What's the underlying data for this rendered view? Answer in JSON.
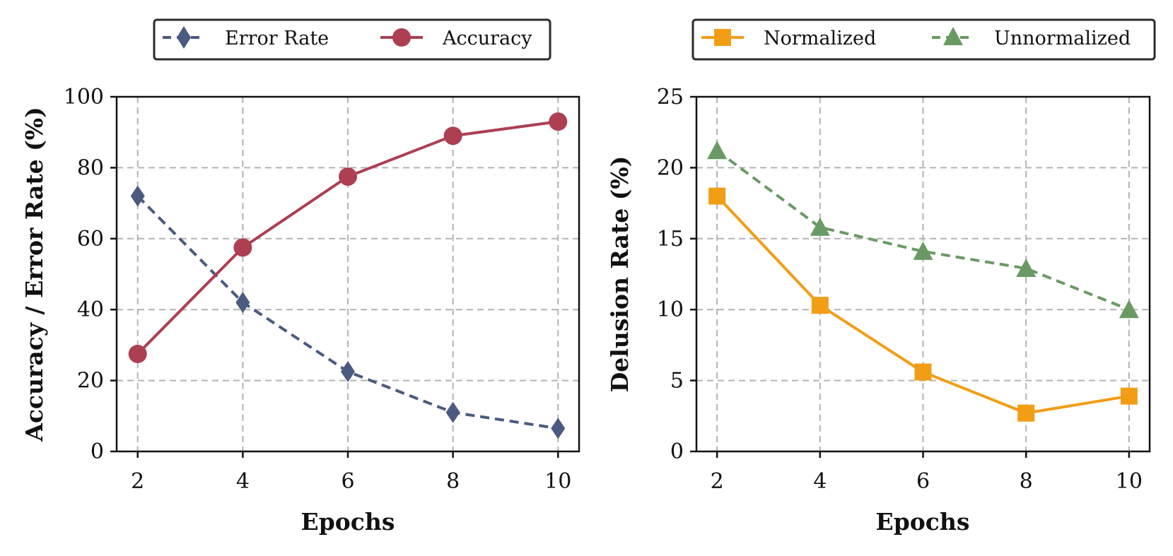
{
  "chart_data": [
    {
      "type": "line",
      "x": [
        2,
        4,
        6,
        8,
        10
      ],
      "xlabel": "Epochs",
      "ylabel": "Accuracy / Error Rate (%)",
      "xticks": [
        "2",
        "4",
        "6",
        "8",
        "10"
      ],
      "yticks": [
        "0",
        "20",
        "40",
        "60",
        "80",
        "100"
      ],
      "xlim": [
        1.6,
        10.4
      ],
      "ylim": [
        0,
        100
      ],
      "grid": true,
      "legend_position": "top-center",
      "series": [
        {
          "name": "Error Rate",
          "values": [
            72,
            42,
            22.5,
            11,
            6.5
          ],
          "color": "#4a5a80",
          "marker": "diamond",
          "linestyle": "dashed"
        },
        {
          "name": "Accuracy",
          "values": [
            27.5,
            57.5,
            77.5,
            89,
            93
          ],
          "color": "#ad3f53",
          "marker": "circle",
          "linestyle": "solid"
        }
      ]
    },
    {
      "type": "line",
      "x": [
        2,
        4,
        6,
        8,
        10
      ],
      "xlabel": "Epochs",
      "ylabel": "Delusion Rate (%)",
      "xticks": [
        "2",
        "4",
        "6",
        "8",
        "10"
      ],
      "yticks": [
        "0",
        "5",
        "10",
        "15",
        "20",
        "25"
      ],
      "xlim": [
        1.6,
        10.4
      ],
      "ylim": [
        0,
        25
      ],
      "grid": true,
      "legend_position": "top-center",
      "series": [
        {
          "name": "Normalized",
          "values": [
            18,
            10.3,
            5.6,
            2.7,
            3.9
          ],
          "color": "#f29d16",
          "marker": "square",
          "linestyle": "solid"
        },
        {
          "name": "Unnormalized",
          "values": [
            21.2,
            15.8,
            14.1,
            12.9,
            10
          ],
          "color": "#6a9a64",
          "marker": "triangle",
          "linestyle": "dashed"
        }
      ]
    }
  ]
}
